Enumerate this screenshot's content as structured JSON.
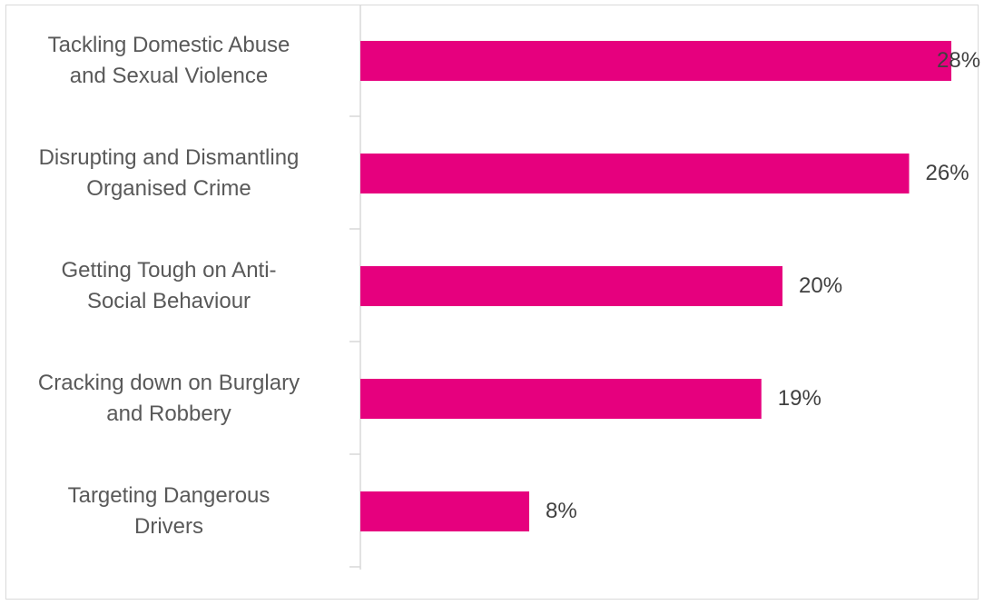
{
  "chart_data": {
    "type": "bar",
    "orientation": "horizontal",
    "categories": [
      [
        "Tackling Domestic Abuse",
        "and Sexual Violence"
      ],
      [
        "Disrupting and Dismantling",
        "Organised Crime"
      ],
      [
        "Getting Tough on Anti-",
        "Social Behaviour"
      ],
      [
        "Cracking down on Burglary",
        "and Robbery"
      ],
      [
        "Targeting Dangerous",
        "Drivers"
      ]
    ],
    "values": [
      28,
      26,
      20,
      19,
      8
    ],
    "value_labels": [
      "28%",
      "26%",
      "20%",
      "19%",
      "8%"
    ],
    "xlim": [
      0,
      28
    ],
    "grid": false,
    "colors": {
      "bar": "#e6007e",
      "axis": "#d9d9d9"
    }
  }
}
